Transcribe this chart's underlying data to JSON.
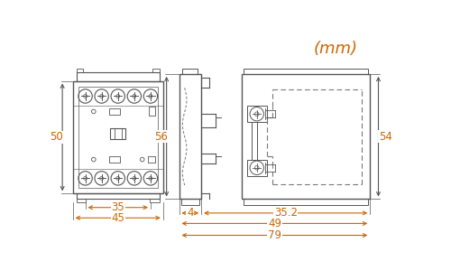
{
  "title": "(mm)",
  "title_color": "#cc6600",
  "title_fontsize": 13,
  "bg_color": "#ffffff",
  "lc": "#555555",
  "dc": "#555555",
  "dim_text_color": "#cc6600",
  "dashed_color": "#777777",
  "dims": {
    "front_height": "50",
    "front_w35": "35",
    "front_w45": "45",
    "side_height": "56",
    "side_w4": "4",
    "side_w352": "35.2",
    "side_w49": "49",
    "side_w79": "79",
    "right_height": "54"
  }
}
